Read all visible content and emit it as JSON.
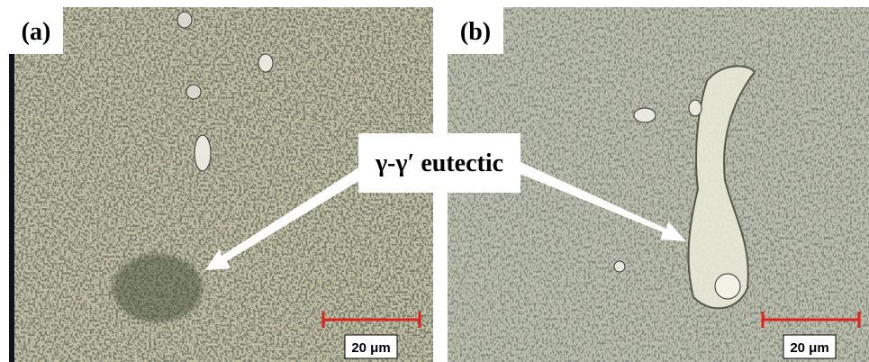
{
  "panels": [
    {
      "label": "(a)",
      "scale_bar": "20 μm"
    },
    {
      "label": "(b)",
      "scale_bar": "20 μm"
    }
  ],
  "annotation": "γ-γ′ eutectic"
}
